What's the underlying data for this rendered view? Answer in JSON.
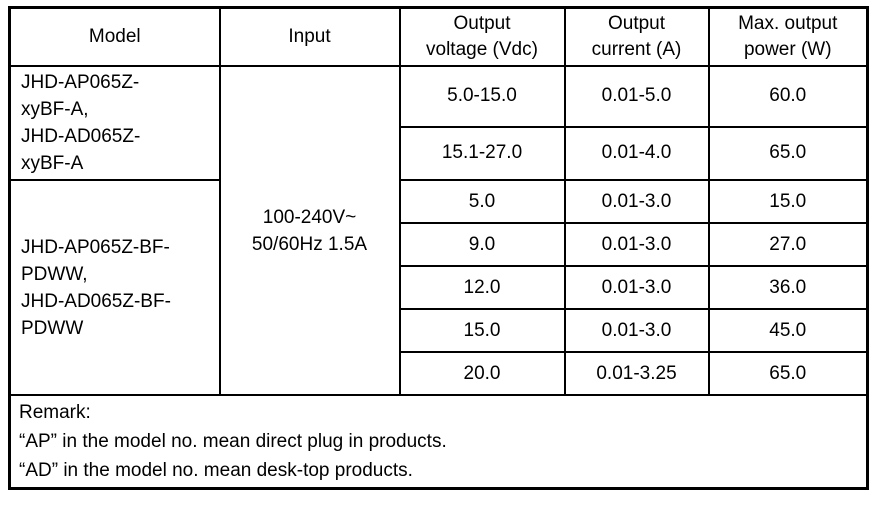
{
  "table": {
    "headers": {
      "model": "Model",
      "input": "Input",
      "output_voltage": "Output\nvoltage (Vdc)",
      "output_current": "Output\ncurrent (A)",
      "max_output_power": "Max. output\npower (W)"
    },
    "model_groups": [
      {
        "model": "JHD-AP065Z-\nxyBF-A,\nJHD-AD065Z-\nxyBF-A"
      },
      {
        "model": "JHD-AP065Z-BF-\nPDWW,\nJHD-AD065Z-BF-\nPDWW"
      }
    ],
    "input_value": "100-240V~\n50/60Hz 1.5A",
    "rows": [
      {
        "voltage": "5.0-15.0",
        "current": "0.01-5.0",
        "power": "60.0"
      },
      {
        "voltage": "15.1-27.0",
        "current": "0.01-4.0",
        "power": "65.0"
      },
      {
        "voltage": "5.0",
        "current": "0.01-3.0",
        "power": "15.0"
      },
      {
        "voltage": "9.0",
        "current": "0.01-3.0",
        "power": "27.0"
      },
      {
        "voltage": "12.0",
        "current": "0.01-3.0",
        "power": "36.0"
      },
      {
        "voltage": "15.0",
        "current": "0.01-3.0",
        "power": "45.0"
      },
      {
        "voltage": "20.0",
        "current": "0.01-3.25",
        "power": "65.0"
      }
    ],
    "remark": {
      "title": "Remark:",
      "lines": [
        "“AP” in the model no. mean direct plug in products.",
        "“AD” in the model no. mean desk-top products."
      ]
    }
  },
  "colors": {
    "border": "#000000",
    "text": "#000000",
    "background": "#ffffff"
  }
}
